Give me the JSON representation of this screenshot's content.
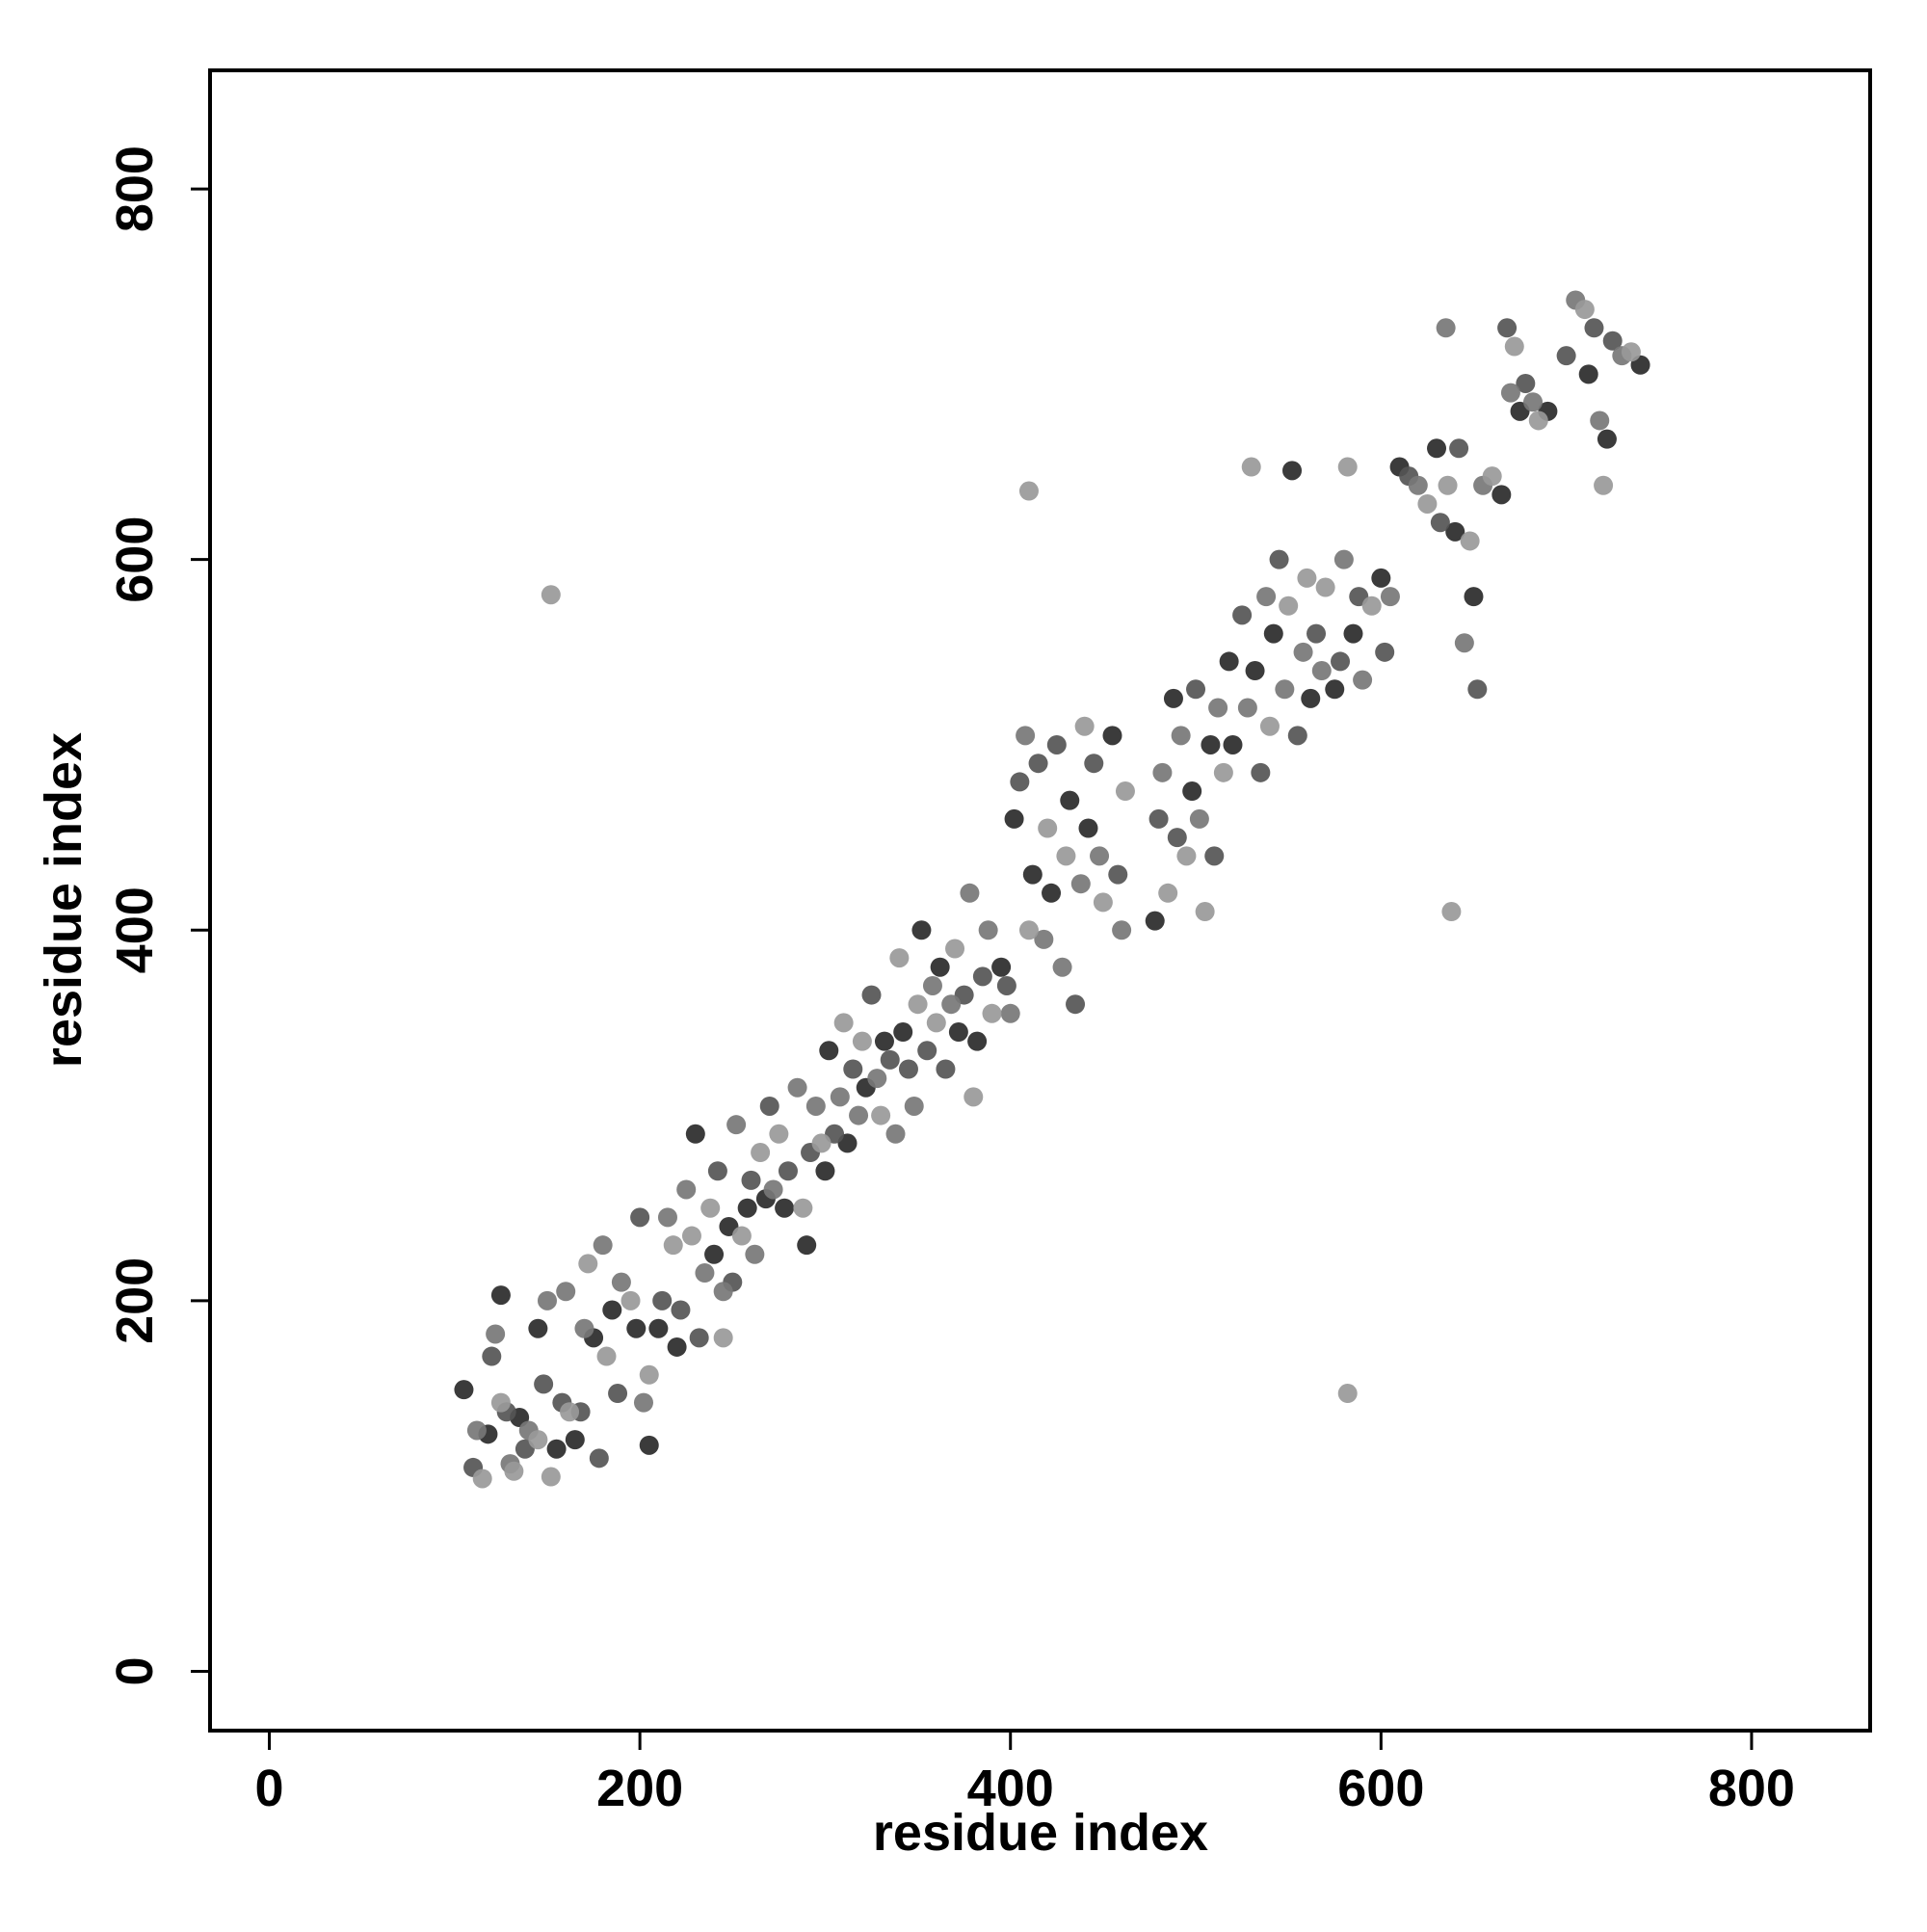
{
  "chart_data": {
    "type": "scatter",
    "x_label": "residue index",
    "y_label": "residue index",
    "xlim": [
      -32,
      864
    ],
    "ylim": [
      -32,
      864
    ],
    "xticks": [
      0,
      200,
      400,
      600,
      800
    ],
    "yticks": [
      0,
      200,
      400,
      600,
      800
    ],
    "grid": false,
    "series": [
      {
        "color": "#2a2a2a",
        "x": [
          105,
          118,
          125,
          135,
          145,
          155,
          165,
          175,
          185,
          198,
          205,
          210,
          220,
          230,
          240,
          248,
          258,
          268,
          278,
          290,
          300,
          302,
          312,
          322,
          332,
          342,
          352,
          362,
          372,
          382,
          395,
          402,
          412,
          422,
          432,
          442,
          455,
          478,
          488,
          498,
          508,
          518,
          520,
          532,
          542,
          552,
          562,
          575,
          585,
          600,
          610,
          630,
          640,
          650,
          665,
          675,
          690,
          712,
          722,
          740
        ],
        "values": [
          152,
          128,
          203,
          137,
          185,
          120,
          125,
          180,
          195,
          185,
          122,
          185,
          175,
          290,
          225,
          240,
          250,
          255,
          250,
          230,
          270,
          335,
          285,
          315,
          340,
          345,
          400,
          380,
          345,
          340,
          380,
          460,
          430,
          420,
          470,
          455,
          505,
          405,
          525,
          475,
          500,
          545,
          500,
          540,
          560,
          648,
          525,
          530,
          560,
          590,
          650,
          660,
          615,
          580,
          635,
          680,
          680,
          700,
          665,
          705
        ]
      },
      {
        "color": "#555555",
        "x": [
          110,
          120,
          128,
          138,
          148,
          158,
          168,
          178,
          188,
          200,
          212,
          222,
          232,
          242,
          250,
          260,
          270,
          280,
          292,
          305,
          315,
          325,
          335,
          345,
          355,
          365,
          375,
          385,
          398,
          405,
          415,
          425,
          435,
          445,
          458,
          480,
          490,
          500,
          510,
          525,
          535,
          545,
          555,
          565,
          578,
          588,
          602,
          615,
          632,
          642,
          652,
          668,
          678,
          700,
          715,
          725
        ],
        "values": [
          110,
          170,
          140,
          120,
          155,
          145,
          140,
          115,
          150,
          245,
          200,
          195,
          180,
          270,
          210,
          265,
          305,
          270,
          280,
          290,
          325,
          365,
          330,
          325,
          335,
          325,
          365,
          375,
          370,
          480,
          490,
          500,
          360,
          490,
          430,
          460,
          450,
          530,
          440,
          570,
          485,
          600,
          505,
          560,
          545,
          580,
          550,
          645,
          620,
          660,
          530,
          725,
          695,
          710,
          725,
          718
        ]
      },
      {
        "color": "#777777",
        "x": [
          112,
          122,
          130,
          140,
          150,
          160,
          170,
          180,
          190,
          202,
          215,
          225,
          235,
          245,
          252,
          262,
          272,
          285,
          295,
          308,
          318,
          328,
          338,
          348,
          358,
          368,
          378,
          388,
          400,
          408,
          418,
          428,
          438,
          448,
          460,
          482,
          492,
          502,
          512,
          528,
          538,
          548,
          558,
          568,
          580,
          590,
          605,
          620,
          635,
          645,
          655,
          670,
          682,
          705,
          718,
          730
        ],
        "values": [
          130,
          182,
          112,
          130,
          200,
          205,
          185,
          230,
          210,
          145,
          245,
          260,
          215,
          205,
          295,
          225,
          260,
          315,
          305,
          310,
          300,
          320,
          290,
          305,
          370,
          360,
          420,
          400,
          355,
          505,
          395,
          380,
          425,
          440,
          400,
          485,
          505,
          460,
          520,
          520,
          580,
          530,
          550,
          540,
          600,
          535,
          580,
          640,
          725,
          555,
          640,
          690,
          685,
          740,
          675,
          710
        ]
      },
      {
        "color": "#999999",
        "x": [
          115,
          125,
          132,
          145,
          152,
          162,
          172,
          182,
          195,
          205,
          218,
          228,
          238,
          245,
          255,
          265,
          275,
          288,
          298,
          310,
          320,
          330,
          340,
          350,
          360,
          370,
          380,
          390,
          410,
          420,
          430,
          440,
          450,
          462,
          485,
          495,
          505,
          515,
          530,
          540,
          550,
          560,
          570,
          582,
          595,
          625,
          636,
          648,
          660,
          672,
          685,
          710,
          720,
          735,
          152,
          410,
          582,
          638
        ],
        "values": [
          104,
          145,
          108,
          125,
          105,
          140,
          220,
          170,
          200,
          160,
          230,
          235,
          250,
          180,
          235,
          280,
          290,
          250,
          285,
          350,
          340,
          300,
          385,
          360,
          350,
          390,
          310,
          355,
          400,
          455,
          440,
          510,
          415,
          475,
          420,
          440,
          410,
          485,
          650,
          510,
          575,
          590,
          585,
          650,
          575,
          630,
          640,
          610,
          645,
          715,
          675,
          735,
          640,
          712,
          581,
          637,
          150,
          410
        ]
      }
    ]
  }
}
